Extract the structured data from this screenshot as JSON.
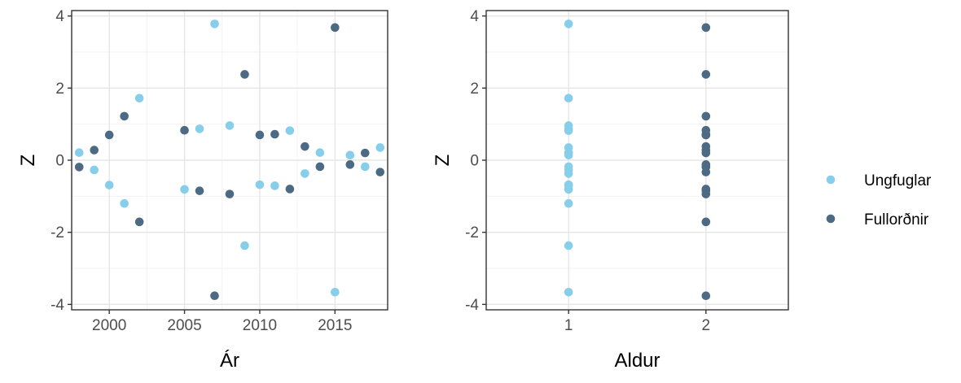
{
  "colors": {
    "ungfuglar": "#87CEEB",
    "fullordnir": "#4D6A85"
  },
  "legend": {
    "items": [
      {
        "label": "Ungfuglar",
        "color": "#87CEEB"
      },
      {
        "label": "Fullorðnir",
        "color": "#4D6A85"
      }
    ]
  },
  "chart_data": [
    {
      "type": "scatter",
      "xlabel": "Ár",
      "ylabel": "Z",
      "xlim": [
        1997.5,
        2018.5
      ],
      "ylim": [
        -4.15,
        4.15
      ],
      "x_ticks": [
        2000,
        2005,
        2010,
        2015
      ],
      "y_ticks": [
        -4,
        -2,
        0,
        2,
        4
      ],
      "grid": true,
      "series": [
        {
          "name": "Ungfuglar",
          "color": "#87CEEB",
          "points": [
            [
              1998,
              0.21
            ],
            [
              1999,
              -0.27
            ],
            [
              2000,
              -0.69
            ],
            [
              2001,
              -1.2
            ],
            [
              2002,
              1.72
            ],
            [
              2005,
              -0.81
            ],
            [
              2006,
              0.87
            ],
            [
              2007,
              3.78
            ],
            [
              2008,
              0.96
            ],
            [
              2009,
              -2.37
            ],
            [
              2010,
              -0.68
            ],
            [
              2011,
              -0.71
            ],
            [
              2012,
              0.82
            ],
            [
              2013,
              -0.37
            ],
            [
              2014,
              0.21
            ],
            [
              2015,
              -3.66
            ],
            [
              2016,
              0.14
            ],
            [
              2017,
              -0.18
            ],
            [
              2018,
              0.35
            ]
          ]
        },
        {
          "name": "Fullorðnir",
          "color": "#4D6A85",
          "points": [
            [
              1998,
              -0.19
            ],
            [
              1999,
              0.28
            ],
            [
              2000,
              0.7
            ],
            [
              2001,
              1.22
            ],
            [
              2002,
              -1.71
            ],
            [
              2005,
              0.83
            ],
            [
              2006,
              -0.85
            ],
            [
              2007,
              -3.76
            ],
            [
              2008,
              -0.94
            ],
            [
              2009,
              2.38
            ],
            [
              2010,
              0.7
            ],
            [
              2011,
              0.72
            ],
            [
              2012,
              -0.8
            ],
            [
              2013,
              0.38
            ],
            [
              2014,
              -0.18
            ],
            [
              2015,
              3.68
            ],
            [
              2016,
              -0.12
            ],
            [
              2017,
              0.2
            ],
            [
              2018,
              -0.33
            ]
          ]
        }
      ]
    },
    {
      "type": "scatter",
      "xlabel": "Aldur",
      "ylabel": "Z",
      "categories": [
        "1",
        "2"
      ],
      "ylim": [
        -4.15,
        4.15
      ],
      "y_ticks": [
        -4,
        -2,
        0,
        2,
        4
      ],
      "grid": true,
      "series": [
        {
          "name": "Ungfuglar",
          "color": "#87CEEB",
          "category": "1",
          "values": [
            0.21,
            -0.27,
            -0.69,
            -1.2,
            1.72,
            -0.81,
            0.87,
            3.78,
            0.96,
            -2.37,
            -0.68,
            -0.71,
            0.82,
            -0.37,
            0.21,
            -3.66,
            0.14,
            -0.18,
            0.35
          ]
        },
        {
          "name": "Fullorðnir",
          "color": "#4D6A85",
          "category": "2",
          "values": [
            -0.19,
            0.28,
            0.7,
            1.22,
            -1.71,
            0.83,
            -0.85,
            -3.76,
            -0.94,
            2.38,
            0.7,
            0.72,
            -0.8,
            0.38,
            -0.18,
            3.68,
            -0.12,
            0.2,
            -0.33
          ]
        }
      ]
    }
  ]
}
